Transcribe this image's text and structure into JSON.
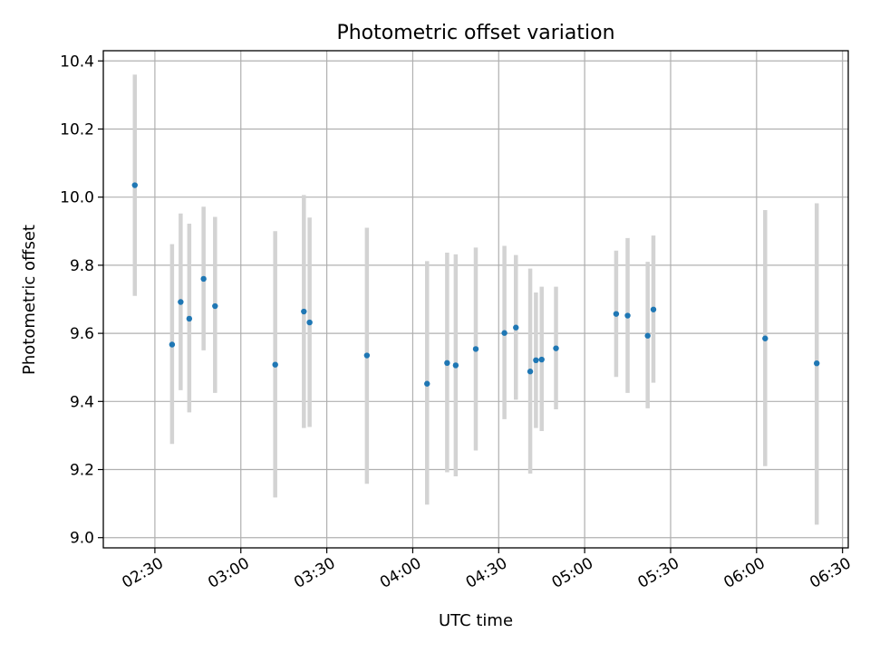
{
  "chart_data": {
    "type": "scatter",
    "title": "Photometric offset variation",
    "xlabel": "UTC time",
    "ylabel": "Photometric offset",
    "x_axis": {
      "scale": "time",
      "range": [
        "02:12",
        "06:32"
      ],
      "tick_labels": [
        "02:30",
        "03:00",
        "03:30",
        "04:00",
        "04:30",
        "05:00",
        "05:30",
        "06:00",
        "06:30"
      ]
    },
    "y_axis": {
      "range": [
        8.97,
        10.43
      ],
      "tick_values": [
        9.0,
        9.2,
        9.4,
        9.6,
        9.8,
        10.0,
        10.2,
        10.4
      ],
      "tick_labels": [
        "9.0",
        "9.2",
        "9.4",
        "9.6",
        "9.8",
        "10.0",
        "10.2",
        "10.4"
      ]
    },
    "grid": true,
    "error_bar_color": "#d3d3d3",
    "point_color": "#1f77b4",
    "points": [
      {
        "t": "02:23",
        "y": 10.035,
        "lo": 9.71,
        "hi": 10.36
      },
      {
        "t": "02:36",
        "y": 9.567,
        "lo": 9.275,
        "hi": 9.862
      },
      {
        "t": "02:39",
        "y": 9.692,
        "lo": 9.433,
        "hi": 9.952
      },
      {
        "t": "02:42",
        "y": 9.643,
        "lo": 9.368,
        "hi": 9.922
      },
      {
        "t": "02:47",
        "y": 9.76,
        "lo": 9.55,
        "hi": 9.972
      },
      {
        "t": "02:51",
        "y": 9.68,
        "lo": 9.425,
        "hi": 9.942
      },
      {
        "t": "03:12",
        "y": 9.508,
        "lo": 9.118,
        "hi": 9.9
      },
      {
        "t": "03:22",
        "y": 9.664,
        "lo": 9.322,
        "hi": 10.006
      },
      {
        "t": "03:24",
        "y": 9.632,
        "lo": 9.325,
        "hi": 9.94
      },
      {
        "t": "03:44",
        "y": 9.535,
        "lo": 9.158,
        "hi": 9.91
      },
      {
        "t": "04:05",
        "y": 9.452,
        "lo": 9.097,
        "hi": 9.812
      },
      {
        "t": "04:12",
        "y": 9.513,
        "lo": 9.192,
        "hi": 9.837
      },
      {
        "t": "04:15",
        "y": 9.506,
        "lo": 9.18,
        "hi": 9.832
      },
      {
        "t": "04:22",
        "y": 9.554,
        "lo": 9.256,
        "hi": 9.852
      },
      {
        "t": "04:32",
        "y": 9.601,
        "lo": 9.348,
        "hi": 9.857
      },
      {
        "t": "04:36",
        "y": 9.617,
        "lo": 9.405,
        "hi": 9.83
      },
      {
        "t": "04:41",
        "y": 9.488,
        "lo": 9.188,
        "hi": 9.79
      },
      {
        "t": "04:43",
        "y": 9.521,
        "lo": 9.322,
        "hi": 9.72
      },
      {
        "t": "04:45",
        "y": 9.523,
        "lo": 9.313,
        "hi": 9.737
      },
      {
        "t": "04:50",
        "y": 9.556,
        "lo": 9.377,
        "hi": 9.737
      },
      {
        "t": "05:11",
        "y": 9.657,
        "lo": 9.472,
        "hi": 9.843
      },
      {
        "t": "05:15",
        "y": 9.652,
        "lo": 9.425,
        "hi": 9.88
      },
      {
        "t": "05:22",
        "y": 9.593,
        "lo": 9.38,
        "hi": 9.81
      },
      {
        "t": "05:24",
        "y": 9.67,
        "lo": 9.455,
        "hi": 9.887
      },
      {
        "t": "06:03",
        "y": 9.585,
        "lo": 9.21,
        "hi": 9.962
      },
      {
        "t": "06:21",
        "y": 9.512,
        "lo": 9.038,
        "hi": 9.982
      }
    ]
  }
}
